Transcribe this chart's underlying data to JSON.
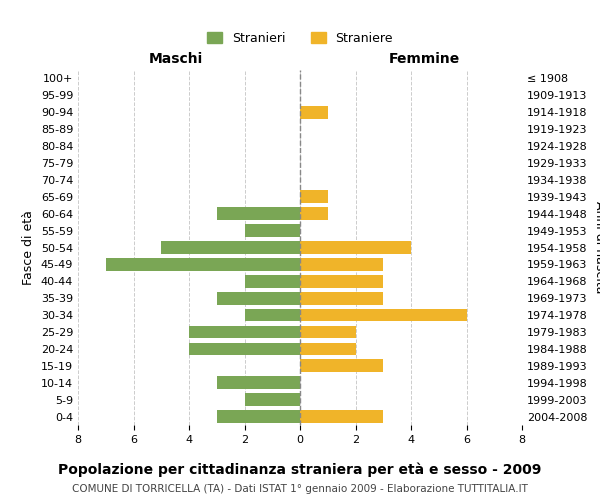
{
  "age_groups": [
    "0-4",
    "5-9",
    "10-14",
    "15-19",
    "20-24",
    "25-29",
    "30-34",
    "35-39",
    "40-44",
    "45-49",
    "50-54",
    "55-59",
    "60-64",
    "65-69",
    "70-74",
    "75-79",
    "80-84",
    "85-89",
    "90-94",
    "95-99",
    "100+"
  ],
  "birth_years": [
    "2004-2008",
    "1999-2003",
    "1994-1998",
    "1989-1993",
    "1984-1988",
    "1979-1983",
    "1974-1978",
    "1969-1973",
    "1964-1968",
    "1959-1963",
    "1954-1958",
    "1949-1953",
    "1944-1948",
    "1939-1943",
    "1934-1938",
    "1929-1933",
    "1924-1928",
    "1919-1923",
    "1914-1918",
    "1909-1913",
    "≤ 1908"
  ],
  "stranieri": [
    3,
    2,
    3,
    0,
    4,
    4,
    2,
    3,
    2,
    7,
    5,
    2,
    3,
    0,
    0,
    0,
    0,
    0,
    0,
    0,
    0
  ],
  "straniere": [
    3,
    0,
    0,
    3,
    2,
    2,
    6,
    3,
    3,
    3,
    4,
    0,
    1,
    1,
    0,
    0,
    0,
    0,
    1,
    0,
    0
  ],
  "stranieri_color": "#7aa655",
  "straniere_color": "#f0b429",
  "xlim": 8,
  "title": "Popolazione per cittadinanza straniera per età e sesso - 2009",
  "subtitle": "COMUNE DI TORRICELLA (TA) - Dati ISTAT 1° gennaio 2009 - Elaborazione TUTTITALIA.IT",
  "ylabel_left": "Fasce di età",
  "ylabel_right": "Anni di nascita",
  "xlabel_maschi": "Maschi",
  "xlabel_femmine": "Femmine",
  "background_color": "#ffffff",
  "grid_color": "#cccccc"
}
